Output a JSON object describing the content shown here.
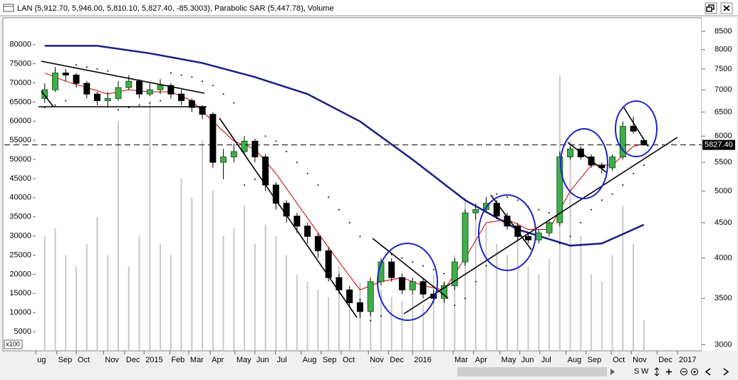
{
  "chart_data": {
    "type": "candlestick",
    "title": "LAN (5,912.70, 5,946.00, 5,810.10, 5,827.40, -85.3003), Parabolic SAR (5,447.78), Volume",
    "y_multiplier_label": "x100",
    "x": [
      0,
      2,
      4,
      6,
      8,
      10,
      12,
      14,
      16,
      18,
      20,
      22,
      24,
      26,
      28,
      30,
      32,
      34,
      36,
      38,
      40,
      42,
      44,
      46,
      48,
      50,
      52,
      54,
      56,
      58,
      60,
      62,
      64,
      66,
      68,
      70,
      72,
      74,
      76,
      78,
      80,
      82,
      84,
      86,
      88,
      90,
      92,
      94,
      96,
      98,
      100,
      102,
      104,
      106,
      108,
      110,
      112,
      114
    ],
    "xlim": [
      -2,
      125
    ],
    "xticks": [
      {
        "value": -1.7,
        "label": "ug"
      },
      {
        "value": 2.3,
        "label": "Sep"
      },
      {
        "value": 6.0,
        "label": "Oct"
      },
      {
        "value": 11.2,
        "label": "Nov"
      },
      {
        "value": 15.2,
        "label": "Dec"
      },
      {
        "value": 18.9,
        "label": "2015"
      },
      {
        "value": 23.8,
        "label": "Feb"
      },
      {
        "value": 27.4,
        "label": "Mar"
      },
      {
        "value": 31.5,
        "label": "Apr"
      },
      {
        "value": 36.2,
        "label": "May"
      },
      {
        "value": 40.0,
        "label": "Jun"
      },
      {
        "value": 43.9,
        "label": "Jul"
      },
      {
        "value": 48.8,
        "label": "Aug"
      },
      {
        "value": 52.6,
        "label": "Sep"
      },
      {
        "value": 56.4,
        "label": "Oct"
      },
      {
        "value": 61.6,
        "label": "Nov"
      },
      {
        "value": 65.4,
        "label": "Dec"
      },
      {
        "value": 70.0,
        "label": "2016"
      },
      {
        "value": 77.7,
        "label": "Mar"
      },
      {
        "value": 81.6,
        "label": "Apr"
      },
      {
        "value": 86.6,
        "label": "May"
      },
      {
        "value": 90.4,
        "label": "Jun"
      },
      {
        "value": 94.2,
        "label": "Jul"
      },
      {
        "value": 99.2,
        "label": "Aug"
      },
      {
        "value": 103.0,
        "label": "Sep"
      },
      {
        "value": 107.8,
        "label": "Oct"
      },
      {
        "value": 111.6,
        "label": "Nov"
      },
      {
        "value": 116.5,
        "label": "Dec"
      },
      {
        "value": 120.4,
        "label": "2017"
      }
    ],
    "ylim": [
      0,
      87000
    ],
    "yticks": [
      5000,
      10000,
      15000,
      20000,
      25000,
      30000,
      35000,
      40000,
      45000,
      50000,
      55000,
      60000,
      65000,
      70000,
      75000,
      80000
    ],
    "y2lim": [
      2940,
      8890
    ],
    "y2log": true,
    "y2ticks": [
      3000,
      3500,
      4000,
      4500,
      5000,
      5500,
      6000,
      6500,
      7000,
      7500,
      8000,
      8500
    ],
    "candles": {
      "axis": "y2",
      "up_color": "#3fae49",
      "down_color": "#000000",
      "open": [
        6800,
        7000,
        7400,
        7350,
        7150,
        6900,
        6750,
        6800,
        7050,
        7200,
        6900,
        7000,
        7100,
        6900,
        6750,
        6600,
        6450,
        5500,
        5600,
        5700,
        5900,
        5600,
        5100,
        4800,
        4600,
        4450,
        4300,
        4100,
        3750,
        3600,
        3450,
        3350,
        3700,
        3950,
        3750,
        3600,
        3700,
        3550,
        3500,
        3650,
        3950,
        4650,
        4700,
        4800,
        4600,
        4450,
        4300,
        4250,
        4350,
        4500,
        5600,
        5750,
        5600,
        5450,
        5400,
        5600,
        6200,
        5912.7
      ],
      "high": [
        7150,
        7550,
        7500,
        7400,
        7200,
        6950,
        6950,
        7200,
        7350,
        7250,
        7150,
        7250,
        7150,
        7000,
        6800,
        6650,
        6500,
        5750,
        5850,
        6000,
        5950,
        5650,
        5150,
        4850,
        4650,
        4500,
        4350,
        4150,
        3800,
        3650,
        3500,
        3750,
        4000,
        4000,
        3800,
        3750,
        3750,
        3600,
        3700,
        4000,
        4700,
        4800,
        4900,
        4850,
        4650,
        4500,
        4350,
        4400,
        4550,
        5700,
        5800,
        5800,
        5650,
        5500,
        5650,
        6300,
        6400,
        5946
      ],
      "low": [
        6700,
        6950,
        7200,
        7050,
        6800,
        6650,
        6600,
        6750,
        7000,
        6800,
        6850,
        6900,
        6800,
        6650,
        6500,
        6350,
        5400,
        5200,
        5500,
        5650,
        5500,
        5000,
        4700,
        4500,
        4350,
        4200,
        4000,
        3700,
        3550,
        3400,
        3280,
        3300,
        3650,
        3700,
        3550,
        3550,
        3500,
        3450,
        3450,
        3600,
        3900,
        4550,
        4650,
        4550,
        4400,
        4250,
        4200,
        4200,
        4300,
        4450,
        5550,
        5550,
        5400,
        5300,
        5350,
        5550,
        6050,
        5810.1
      ],
      "close": [
        7000,
        7400,
        7350,
        7150,
        6900,
        6750,
        6800,
        7050,
        7200,
        6900,
        7000,
        7100,
        6900,
        6750,
        6600,
        6450,
        5500,
        5600,
        5700,
        5900,
        5600,
        5100,
        4800,
        4600,
        4450,
        4300,
        4100,
        3750,
        3600,
        3450,
        3350,
        3700,
        3950,
        3750,
        3600,
        3700,
        3550,
        3500,
        3650,
        3950,
        4650,
        4700,
        4800,
        4600,
        4450,
        4300,
        4250,
        4350,
        4500,
        5600,
        5750,
        5600,
        5450,
        5400,
        5600,
        6200,
        6100,
        5827.4
      ]
    },
    "sar": {
      "axis": "y2",
      "color": "#000000",
      "values": [
        6600,
        6650,
        6750,
        7600,
        7550,
        7500,
        7450,
        6550,
        6600,
        6650,
        6700,
        6750,
        7400,
        7350,
        7300,
        7200,
        7100,
        6900,
        6700,
        5100,
        5200,
        6000,
        5900,
        5700,
        5500,
        5300,
        5100,
        4900,
        4700,
        4500,
        4300,
        3250,
        3300,
        4050,
        4000,
        3950,
        3900,
        3850,
        3800,
        3420,
        3500,
        3700,
        3900,
        4950,
        4900,
        4850,
        4750,
        4700,
        4650,
        4200,
        4300,
        4500,
        4700,
        4850,
        4950,
        5100,
        5300,
        5447.78
      ]
    },
    "volume": {
      "color": "#c8c8c8",
      "values": [
        30000,
        32000,
        25000,
        22000,
        28000,
        35000,
        25000,
        60000,
        22000,
        30000,
        65000,
        28000,
        25000,
        45000,
        40000,
        55000,
        42000,
        30000,
        32000,
        38000,
        28000,
        33000,
        30000,
        25000,
        20000,
        18000,
        16000,
        14000,
        22000,
        15000,
        18000,
        12000,
        16000,
        14000,
        13000,
        15000,
        12000,
        20000,
        18000,
        25000,
        40000,
        35000,
        33000,
        28000,
        25000,
        30000,
        22000,
        20000,
        24000,
        72000,
        55000,
        30000,
        20000,
        18000,
        25000,
        38000,
        28000,
        8000
      ]
    },
    "ma_fast": {
      "axis": "y2",
      "color": "#cc0000",
      "x": [
        0,
        4,
        8,
        12,
        16,
        20,
        24,
        28,
        32,
        36,
        40,
        44,
        48,
        52,
        56,
        60,
        64,
        68,
        72,
        76,
        80,
        84,
        88,
        92,
        96,
        100,
        104,
        108,
        112,
        114
      ],
      "values": [
        7400,
        7200,
        7050,
        6900,
        7000,
        6950,
        6950,
        6750,
        6300,
        5900,
        5750,
        5300,
        4800,
        4350,
        3950,
        3600,
        3700,
        3750,
        3650,
        3600,
        4000,
        4500,
        4550,
        4400,
        4400,
        5000,
        5450,
        5450,
        5800,
        5850
      ]
    },
    "ma_slow": {
      "axis": "y2",
      "color": "#1c1c86",
      "x": [
        0,
        10,
        20,
        30,
        40,
        50,
        60,
        70,
        80,
        90,
        100,
        106,
        114
      ],
      "values": [
        8100,
        8100,
        7900,
        7650,
        7300,
        6900,
        6300,
        5550,
        4850,
        4400,
        4170,
        4200,
        4470
      ]
    },
    "last_price": {
      "value": 5827.4,
      "label": "5827.40"
    }
  },
  "toolbar": [
    "S",
    "W"
  ]
}
